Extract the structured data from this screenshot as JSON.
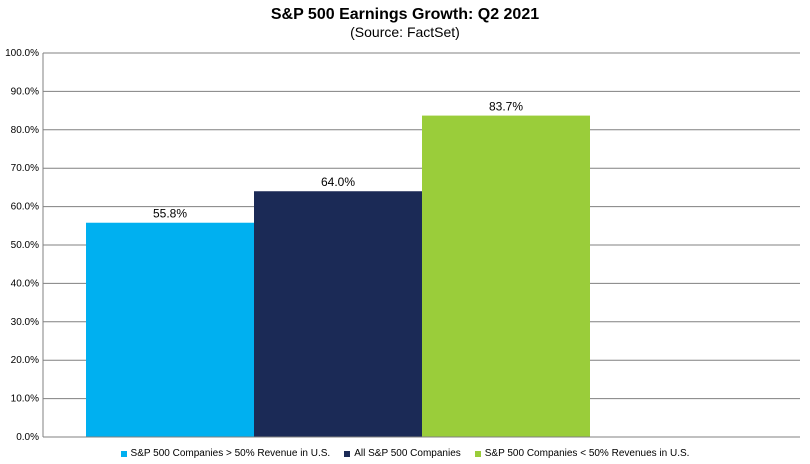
{
  "chart_data": {
    "type": "bar",
    "title": "S&P 500 Earnings Growth:  Q2 2021",
    "subtitle": "(Source: FactSet)",
    "xlabel": "",
    "ylabel": "",
    "ylim": [
      0,
      100
    ],
    "y_ticks": [
      "0.0%",
      "10.0%",
      "20.0%",
      "30.0%",
      "40.0%",
      "50.0%",
      "60.0%",
      "70.0%",
      "80.0%",
      "90.0%",
      "100.0%"
    ],
    "grid": true,
    "legend_position": "bottom",
    "series": [
      {
        "name": "S&P 500 Companies > 50% Revenue in U.S.",
        "value": 55.8,
        "label": "55.8%",
        "color": "#00b0f0"
      },
      {
        "name": "All S&P 500 Companies",
        "value": 64.0,
        "label": "64.0%",
        "color": "#1b2a56"
      },
      {
        "name": "S&P 500 Companies < 50% Revenues in U.S.",
        "value": 83.7,
        "label": "83.7%",
        "color": "#9acd3a"
      }
    ]
  }
}
